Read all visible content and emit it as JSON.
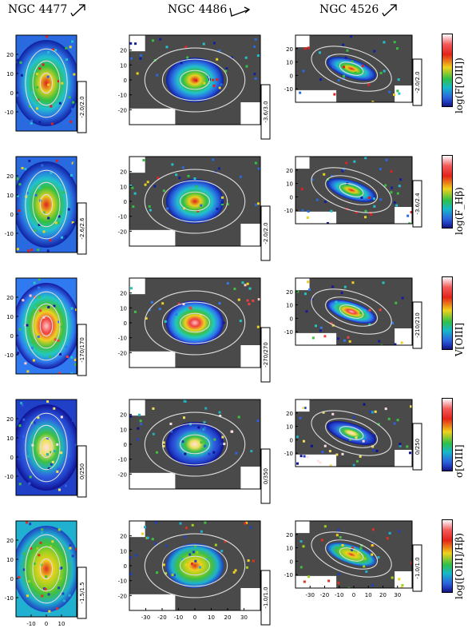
{
  "columns": [
    {
      "title": "NGC 4477",
      "xlabels": [
        "-10",
        "0",
        "10"
      ],
      "arrow": "up-right"
    },
    {
      "title": "NGC 4486",
      "xlabels": [
        "-30",
        "-20",
        "-10",
        "0",
        "10",
        "20",
        "30"
      ],
      "arrow": "right-curl"
    },
    {
      "title": "NGC 4526",
      "xlabels": [
        "-30",
        "-20",
        "-10",
        "0",
        "10",
        "20",
        "30"
      ],
      "arrow": "up-right"
    }
  ],
  "rows": [
    {
      "quantity": "log(F[OIII])",
      "ranges": [
        "-2.0/2.0",
        "-3.6/3.0",
        "-2.0/2.0"
      ],
      "yticks": [
        [
          "20",
          "10",
          "0",
          "-10"
        ],
        [
          "20",
          "10",
          "0",
          "-10",
          "-20"
        ],
        [
          "20",
          "10",
          "0",
          "-10"
        ]
      ]
    },
    {
      "quantity": "log(F_Hβ)",
      "ranges": [
        "-2.6/2.6",
        "-2.0/2.0",
        "-3.6/2.4"
      ],
      "yticks": [
        [
          "20",
          "10",
          "0",
          "-10"
        ],
        [
          "20",
          "10",
          "0",
          "-10",
          "-20"
        ],
        [
          "20",
          "10",
          "0",
          "-10"
        ]
      ]
    },
    {
      "quantity": "V[OIII]",
      "ranges": [
        "-170/170",
        "-270/270",
        "-210/210"
      ],
      "yticks": [
        [
          "20",
          "10",
          "0",
          "-10"
        ],
        [
          "20",
          "10",
          "0",
          "-10",
          "-20"
        ],
        [
          "20",
          "10",
          "0",
          "-10"
        ]
      ]
    },
    {
      "quantity": "σ[OIII]",
      "ranges": [
        "0/250",
        "0/350",
        "0/250"
      ],
      "yticks": [
        [
          "20",
          "10",
          "0",
          "-10"
        ],
        [
          "20",
          "10",
          "0",
          "-10",
          "-20"
        ],
        [
          "20",
          "10",
          "0",
          "-10"
        ]
      ]
    },
    {
      "quantity": "log([OIII]/Hβ)",
      "ranges": [
        "-1.5/1.5",
        "-1.0/1.0",
        "-1.0/1.0"
      ],
      "yticks": [
        [
          "20",
          "10",
          "0",
          "-10"
        ],
        [
          "20",
          "10",
          "0",
          "-10",
          "-20"
        ],
        [
          "20",
          "10",
          "0",
          "-10"
        ]
      ]
    }
  ],
  "colors": {
    "background_mask": "#4a4a4a",
    "contour": "#dddddd",
    "frame": "#000000"
  }
}
